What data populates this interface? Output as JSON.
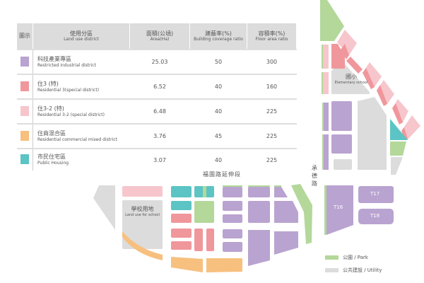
{
  "table": {
    "headers": [
      {
        "zh": "圖示",
        "en": ""
      },
      {
        "zh": "使用分區",
        "en": "Land use district"
      },
      {
        "zh": "面積(公頃)",
        "en": "Area(Ha)"
      },
      {
        "zh": "建蔽率(%)",
        "en": "Building coverage ratio"
      },
      {
        "zh": "容積率(%)",
        "en": "Floor area ratio"
      }
    ],
    "rows": [
      {
        "zh": "科技產業專區",
        "en": "Restricted industrial district",
        "area": "25.03",
        "coverage": "50",
        "far": "300",
        "color": "#b9a3d0"
      },
      {
        "zh": "住3 (特)",
        "en": "Residential 3(special district)",
        "area": "6.52",
        "coverage": "40",
        "far": "160",
        "color": "#f0979c"
      },
      {
        "zh": "住3-2 (特)",
        "en": "Residential 3-2 (special district)",
        "area": "6.48",
        "coverage": "40",
        "far": "225",
        "color": "#f6c6cc"
      },
      {
        "zh": "住商混合區",
        "en": "Residential commercial mixed district",
        "area": "3.76",
        "coverage": "45",
        "far": "225",
        "color": "#f7c07f"
      },
      {
        "zh": "市民住宅區",
        "en": "Public Housing",
        "area": "3.07",
        "coverage": "40",
        "far": "225",
        "color": "#5cc4c4"
      }
    ]
  },
  "map": {
    "roads": {
      "fuyuan": "福園路延伸段",
      "chengde": "承德路"
    },
    "school": {
      "zh": "學校用地",
      "en": "Land use for school"
    },
    "elementary": {
      "zh": "國小",
      "en": "Elementary school"
    },
    "parcels": {
      "t16": "T16",
      "t17": "T17",
      "t18": "T18"
    },
    "colors": {
      "purple": "#b9a3d0",
      "red": "#f0979c",
      "pink": "#f6c6cc",
      "orange": "#f7c07f",
      "teal": "#5cc4c4",
      "green": "#b3d89a",
      "gray": "#dcdcdc"
    }
  },
  "legend": [
    {
      "label": "公園 / Park",
      "color": "#b3d89a"
    },
    {
      "label": "公共建設 / Utility",
      "color": "#dcdcdc"
    }
  ]
}
